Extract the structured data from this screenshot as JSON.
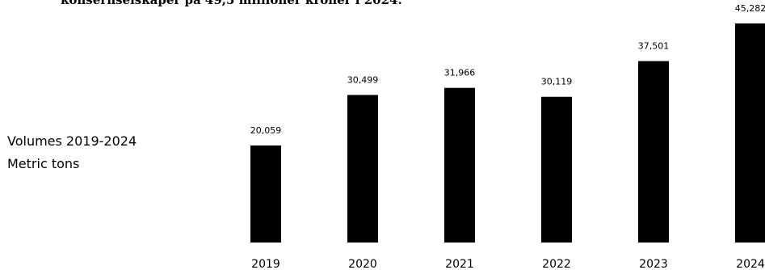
{
  "header": {
    "text": "konsernselskaper på 49,5 millioner kroner i 2024."
  },
  "side_label": {
    "line1": "Volumes 2019-2024",
    "line2": "Metric tons"
  },
  "chart_data": {
    "type": "bar",
    "title": "Volumes 2019-2024",
    "ylabel": "Metric tons",
    "categories": [
      "2019",
      "2020",
      "2021",
      "2022",
      "2023",
      "2024"
    ],
    "values": [
      20059,
      30499,
      31966,
      30119,
      37501,
      45282
    ],
    "value_labels": [
      "20,059",
      "30,499",
      "31,966",
      "30,119",
      "37,501",
      "45,282"
    ],
    "ylim": [
      0,
      45282
    ],
    "grid": false,
    "legend": "none",
    "bar_color": "#000000"
  }
}
